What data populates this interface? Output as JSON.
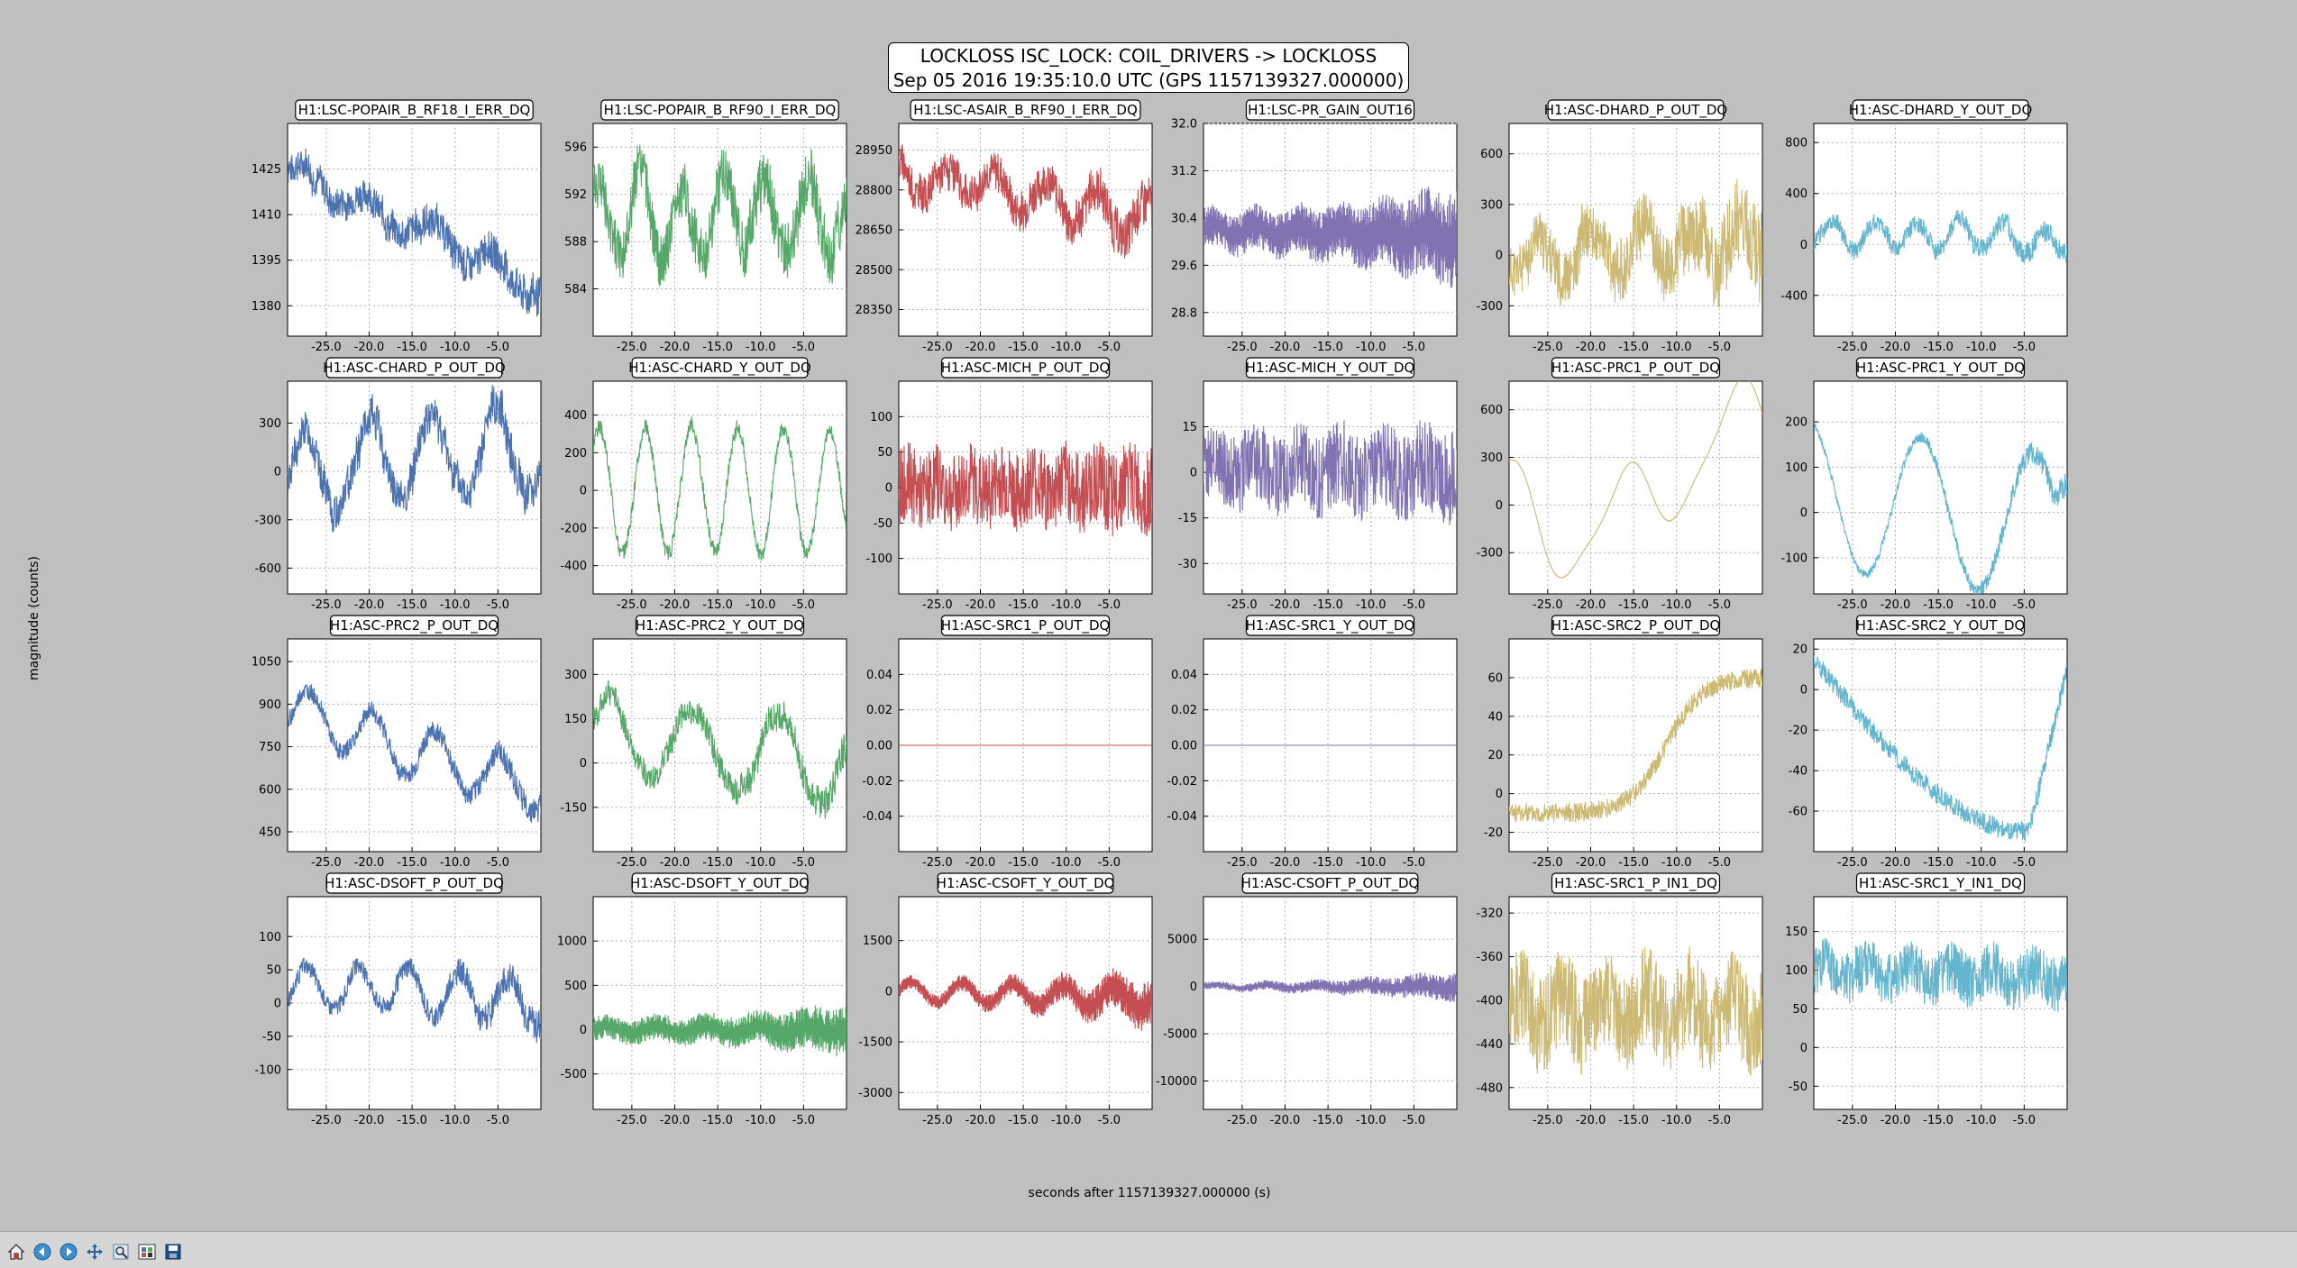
{
  "figure": {
    "title_line1": "LOCKLOSS ISC_LOCK: COIL_DRIVERS -> LOCKLOSS",
    "title_line2": "Sep 05 2016 19:35:10.0 UTC (GPS 1157139327.000000)",
    "ylabel": "magnitude (counts)",
    "xlabel": "seconds after 1157139327.000000 (s)"
  },
  "toolbar": {
    "buttons": [
      {
        "name": "home-icon",
        "label": "Home"
      },
      {
        "name": "back-icon",
        "label": "Back"
      },
      {
        "name": "forward-icon",
        "label": "Forward"
      },
      {
        "name": "pan-icon",
        "label": "Pan"
      },
      {
        "name": "zoom-icon",
        "label": "Zoom"
      },
      {
        "name": "configure-subplots-icon",
        "label": "Subplots"
      },
      {
        "name": "save-icon",
        "label": "Save"
      }
    ]
  },
  "colors": {
    "blue": "#4c72b0",
    "green": "#55a868",
    "red": "#c44e52",
    "purple": "#8172b2",
    "gold": "#ccb974",
    "cyan": "#64b5cd"
  },
  "chart_data": [
    {
      "type": "line",
      "title": "H1:LSC-POPAIR_B_RF18_I_ERR_DQ",
      "color": "blue",
      "xlim": [
        -29.5,
        0
      ],
      "ylim": [
        1370,
        1440
      ],
      "yticks": [
        "1425",
        "1410",
        "1395",
        "1380"
      ],
      "ytickvals": [
        1425,
        1410,
        1395,
        1380
      ],
      "xticks": [
        "-25.0",
        "-20.0",
        "-15.0",
        "-10.0",
        "-5.0"
      ],
      "shape": "trend",
      "start": 1425,
      "end": 1388,
      "noise": 5,
      "wave": 4,
      "waves": 4,
      "grow": 0.3
    },
    {
      "type": "line",
      "title": "H1:LSC-POPAIR_B_RF90_I_ERR_DQ",
      "color": "green",
      "xlim": [
        -29.5,
        0
      ],
      "ylim": [
        580,
        598
      ],
      "yticks": [
        "596",
        "592",
        "588",
        "584"
      ],
      "ytickvals": [
        596,
        592,
        588,
        584
      ],
      "xticks": [
        "-25.0",
        "-20.0",
        "-15.0",
        "-10.0",
        "-5.0"
      ],
      "shape": "wave",
      "start": 590,
      "end": 590,
      "noise": 2.2,
      "wave": 3,
      "waves": 6,
      "grow": 0.2
    },
    {
      "type": "line",
      "title": "H1:LSC-ASAIR_B_RF90_I_ERR_DQ",
      "color": "red",
      "xlim": [
        -29.5,
        0
      ],
      "ylim": [
        28250,
        29050
      ],
      "yticks": [
        "28950",
        "28800",
        "28650",
        "28500",
        "28350"
      ],
      "ytickvals": [
        28950,
        28800,
        28650,
        28500,
        28350
      ],
      "xticks": [
        "-25.0",
        "-20.0",
        "-15.0",
        "-10.0",
        "-5.0"
      ],
      "shape": "trend",
      "start": 28850,
      "end": 28700,
      "noise": 70,
      "wave": 60,
      "waves": 5,
      "grow": 0.3
    },
    {
      "type": "line",
      "title": "H1:LSC-PR_GAIN_OUT16",
      "color": "purple",
      "xlim": [
        -29.5,
        0
      ],
      "ylim": [
        28.4,
        32.0
      ],
      "yticks": [
        "32.0",
        "31.2",
        "30.4",
        "29.6",
        "28.8"
      ],
      "ytickvals": [
        32.0,
        31.2,
        30.4,
        29.6,
        28.8
      ],
      "xticks": [
        "-25.0",
        "-20.0",
        "-15.0",
        "-10.0",
        "-5.0"
      ],
      "shape": "grow",
      "start": 30.2,
      "end": 30.1,
      "noise": 0.25,
      "wave": 0.1,
      "waves": 6,
      "grow": 1.4
    },
    {
      "type": "line",
      "title": "H1:ASC-DHARD_P_OUT_DQ",
      "color": "gold",
      "xlim": [
        -29.5,
        0
      ],
      "ylim": [
        -480,
        780
      ],
      "yticks": [
        "600",
        "300",
        "0",
        "-300"
      ],
      "ytickvals": [
        600,
        300,
        0,
        -300
      ],
      "xticks": [
        "-25.0",
        "-20.0",
        "-15.0",
        "-10.0",
        "-5.0"
      ],
      "shape": "wave",
      "start": 0,
      "end": 100,
      "noise": 150,
      "wave": 120,
      "waves": 5,
      "grow": 0.8
    },
    {
      "type": "line",
      "title": "H1:ASC-DHARD_Y_OUT_DQ",
      "color": "cyan",
      "xlim": [
        -29.5,
        0
      ],
      "ylim": [
        -720,
        950
      ],
      "yticks": [
        "800",
        "400",
        "0",
        "-400"
      ],
      "ytickvals": [
        800,
        400,
        0,
        -400
      ],
      "xticks": [
        "-25.0",
        "-20.0",
        "-15.0",
        "-10.0",
        "-5.0"
      ],
      "shape": "wave",
      "start": 100,
      "end": 0,
      "noise": 70,
      "wave": 100,
      "waves": 6,
      "grow": 0.2
    },
    {
      "type": "line",
      "title": "H1:ASC-CHARD_P_OUT_DQ",
      "color": "blue",
      "xlim": [
        -29.5,
        0
      ],
      "ylim": [
        -760,
        560
      ],
      "yticks": [
        "300",
        "0",
        "-300",
        "-600"
      ],
      "ytickvals": [
        300,
        0,
        -300,
        -600
      ],
      "xticks": [
        "-25.0",
        "-20.0",
        "-15.0",
        "-10.0",
        "-5.0"
      ],
      "shape": "wave",
      "start": 0,
      "end": 100,
      "noise": 110,
      "wave": 260,
      "waves": 4,
      "grow": 0.2
    },
    {
      "type": "line",
      "title": "H1:ASC-CHARD_Y_OUT_DQ",
      "color": "green",
      "xlim": [
        -29.5,
        0
      ],
      "ylim": [
        -550,
        580
      ],
      "yticks": [
        "400",
        "200",
        "0",
        "-200",
        "-400"
      ],
      "ytickvals": [
        400,
        200,
        0,
        -200,
        -400
      ],
      "xticks": [
        "-25.0",
        "-20.0",
        "-15.0",
        "-10.0",
        "-5.0"
      ],
      "shape": "wave",
      "start": 0,
      "end": 0,
      "noise": 40,
      "wave": 330,
      "waves": 5.5,
      "grow": -0.2
    },
    {
      "type": "line",
      "title": "H1:ASC-MICH_P_OUT_DQ",
      "color": "red",
      "xlim": [
        -29.5,
        0
      ],
      "ylim": [
        -150,
        150
      ],
      "yticks": [
        "100",
        "50",
        "0",
        "-50",
        "-100"
      ],
      "ytickvals": [
        100,
        50,
        0,
        -50,
        -100
      ],
      "xticks": [
        "-25.0",
        "-20.0",
        "-15.0",
        "-10.0",
        "-5.0"
      ],
      "shape": "noise",
      "start": 0,
      "end": 0,
      "noise": 55,
      "wave": 10,
      "waves": 8,
      "grow": 0.1
    },
    {
      "type": "line",
      "title": "H1:ASC-MICH_Y_OUT_DQ",
      "color": "purple",
      "xlim": [
        -29.5,
        0
      ],
      "ylim": [
        -40,
        30
      ],
      "yticks": [
        "15",
        "0",
        "-15",
        "-30"
      ],
      "ytickvals": [
        15,
        0,
        -15,
        -30
      ],
      "xticks": [
        "-25.0",
        "-20.0",
        "-15.0",
        "-10.0",
        "-5.0"
      ],
      "shape": "noise",
      "start": 2,
      "end": 0,
      "noise": 13,
      "wave": 3,
      "waves": 6,
      "grow": 0.2
    },
    {
      "type": "line",
      "title": "H1:ASC-PRC1_P_OUT_DQ",
      "color": "gold",
      "xlim": [
        -29.5,
        0
      ],
      "ylim": [
        -560,
        780
      ],
      "yticks": [
        "600",
        "300",
        "0",
        "-300"
      ],
      "ytickvals": [
        600,
        300,
        0,
        -300
      ],
      "xticks": [
        "-25.0",
        "-20.0",
        "-15.0",
        "-10.0",
        "-5.0"
      ],
      "shape": "smooth",
      "start": 300,
      "end": 550,
      "noise": 4,
      "wave": 0,
      "waves": 0,
      "grow": 0
    },
    {
      "type": "line",
      "title": "H1:ASC-PRC1_Y_OUT_DQ",
      "color": "cyan",
      "xlim": [
        -29.5,
        0
      ],
      "ylim": [
        -180,
        290
      ],
      "yticks": [
        "200",
        "100",
        "0",
        "-100"
      ],
      "ytickvals": [
        200,
        100,
        0,
        -100
      ],
      "xticks": [
        "-25.0",
        "-20.0",
        "-15.0",
        "-10.0",
        "-5.0"
      ],
      "shape": "prc1y",
      "start": 150,
      "end": 100,
      "noise": 15,
      "wave": 0,
      "waves": 0,
      "grow": 0.8
    },
    {
      "type": "line",
      "title": "H1:ASC-PRC2_P_OUT_DQ",
      "color": "blue",
      "xlim": [
        -29.5,
        0
      ],
      "ylim": [
        380,
        1130
      ],
      "yticks": [
        "1050",
        "900",
        "750",
        "600",
        "450"
      ],
      "ytickvals": [
        1050,
        900,
        750,
        600,
        450
      ],
      "xticks": [
        "-25.0",
        "-20.0",
        "-15.0",
        "-10.0",
        "-5.0"
      ],
      "shape": "trend",
      "start": 880,
      "end": 600,
      "noise": 30,
      "wave": 90,
      "waves": 4,
      "grow": 0.5
    },
    {
      "type": "line",
      "title": "H1:ASC-PRC2_Y_OUT_DQ",
      "color": "green",
      "xlim": [
        -29.5,
        0
      ],
      "ylim": [
        -300,
        420
      ],
      "yticks": [
        "300",
        "150",
        "0",
        "-150"
      ],
      "ytickvals": [
        300,
        150,
        0,
        -150
      ],
      "xticks": [
        "-25.0",
        "-20.0",
        "-15.0",
        "-10.0",
        "-5.0"
      ],
      "shape": "wave",
      "start": 100,
      "end": 0,
      "noise": 40,
      "wave": 130,
      "waves": 3,
      "grow": 0.5
    },
    {
      "type": "line",
      "title": "H1:ASC-SRC1_P_OUT_DQ",
      "color": "red",
      "xlim": [
        -29.5,
        0
      ],
      "ylim": [
        -0.06,
        0.06
      ],
      "yticks": [
        "0.04",
        "0.02",
        "0.00",
        "-0.02",
        "-0.04"
      ],
      "ytickvals": [
        0.04,
        0.02,
        0.0,
        -0.02,
        -0.04
      ],
      "xticks": [
        "-25.0",
        "-20.0",
        "-15.0",
        "-10.0",
        "-5.0"
      ],
      "shape": "flat",
      "start": 0,
      "end": 0,
      "noise": 0,
      "wave": 0,
      "waves": 0,
      "grow": 0
    },
    {
      "type": "line",
      "title": "H1:ASC-SRC1_Y_OUT_DQ",
      "color": "purple",
      "xlim": [
        -29.5,
        0
      ],
      "ylim": [
        -0.06,
        0.06
      ],
      "yticks": [
        "0.04",
        "0.02",
        "0.00",
        "-0.02",
        "-0.04"
      ],
      "ytickvals": [
        0.04,
        0.02,
        0.0,
        -0.02,
        -0.04
      ],
      "xticks": [
        "-25.0",
        "-20.0",
        "-15.0",
        "-10.0",
        "-5.0"
      ],
      "shape": "flat",
      "start": 0,
      "end": 0,
      "noise": 0,
      "wave": 0,
      "waves": 0,
      "grow": 0
    },
    {
      "type": "line",
      "title": "H1:ASC-SRC2_P_OUT_DQ",
      "color": "gold",
      "xlim": [
        -29.5,
        0
      ],
      "ylim": [
        -30,
        80
      ],
      "yticks": [
        "60",
        "40",
        "20",
        "0",
        "-20"
      ],
      "ytickvals": [
        60,
        40,
        20,
        0,
        -20
      ],
      "xticks": [
        "-25.0",
        "-20.0",
        "-15.0",
        "-10.0",
        "-5.0"
      ],
      "shape": "src2p",
      "start": -5,
      "end": 55,
      "noise": 5,
      "wave": 0,
      "waves": 0,
      "grow": 0
    },
    {
      "type": "line",
      "title": "H1:ASC-SRC2_Y_OUT_DQ",
      "color": "cyan",
      "xlim": [
        -29.5,
        0
      ],
      "ylim": [
        -80,
        25
      ],
      "yticks": [
        "20",
        "0",
        "-20",
        "-40",
        "-60"
      ],
      "ytickvals": [
        20,
        0,
        -20,
        -40,
        -60
      ],
      "xticks": [
        "-25.0",
        "-20.0",
        "-15.0",
        "-10.0",
        "-5.0"
      ],
      "shape": "src2y",
      "start": 15,
      "end": 5,
      "noise": 5,
      "wave": 0,
      "waves": 0,
      "grow": 0
    },
    {
      "type": "line",
      "title": "H1:ASC-DSOFT_P_OUT_DQ",
      "color": "blue",
      "xlim": [
        -29.5,
        0
      ],
      "ylim": [
        -160,
        160
      ],
      "yticks": [
        "100",
        "50",
        "0",
        "-50",
        "-100"
      ],
      "ytickvals": [
        100,
        50,
        0,
        -50,
        -100
      ],
      "xticks": [
        "-25.0",
        "-20.0",
        "-15.0",
        "-10.0",
        "-5.0"
      ],
      "shape": "wave",
      "start": 30,
      "end": 0,
      "noise": 12,
      "wave": 35,
      "waves": 5,
      "grow": 1.2
    },
    {
      "type": "line",
      "title": "H1:ASC-DSOFT_Y_OUT_DQ",
      "color": "green",
      "xlim": [
        -29.5,
        0
      ],
      "ylim": [
        -900,
        1500
      ],
      "yticks": [
        "1000",
        "500",
        "0",
        "-500"
      ],
      "ytickvals": [
        1000,
        500,
        0,
        -500
      ],
      "xticks": [
        "-25.0",
        "-20.0",
        "-15.0",
        "-10.0",
        "-5.0"
      ],
      "shape": "grow",
      "start": 0,
      "end": 0,
      "noise": 100,
      "wave": 40,
      "waves": 5,
      "grow": 1.0
    },
    {
      "type": "line",
      "title": "H1:ASC-CSOFT_Y_OUT_DQ",
      "color": "red",
      "xlim": [
        -29.5,
        0
      ],
      "ylim": [
        -3500,
        2800
      ],
      "yticks": [
        "1500",
        "0",
        "-1500",
        "-3000"
      ],
      "ytickvals": [
        1500,
        0,
        -1500,
        -3000
      ],
      "xticks": [
        "-25.0",
        "-20.0",
        "-15.0",
        "-10.0",
        "-5.0"
      ],
      "shape": "grow",
      "start": 0,
      "end": -200,
      "noise": 150,
      "wave": 300,
      "waves": 5,
      "grow": 2.5
    },
    {
      "type": "line",
      "title": "H1:ASC-CSOFT_P_OUT_DQ",
      "color": "purple",
      "xlim": [
        -29.5,
        0
      ],
      "ylim": [
        -13000,
        9500
      ],
      "yticks": [
        "5000",
        "0",
        "-5000",
        "-10000"
      ],
      "ytickvals": [
        5000,
        0,
        -5000,
        -10000
      ],
      "xticks": [
        "-25.0",
        "-20.0",
        "-15.0",
        "-10.0",
        "-5.0"
      ],
      "shape": "grow",
      "start": 0,
      "end": 0,
      "noise": 300,
      "wave": 200,
      "waves": 5,
      "grow": 2.8
    },
    {
      "type": "line",
      "title": "H1:ASC-SRC1_P_IN1_DQ",
      "color": "gold",
      "xlim": [
        -29.5,
        0
      ],
      "ylim": [
        -500,
        -305
      ],
      "yticks": [
        "-320",
        "-360",
        "-400",
        "-440",
        "-480"
      ],
      "ytickvals": [
        -320,
        -360,
        -400,
        -440,
        -480
      ],
      "xticks": [
        "-25.0",
        "-20.0",
        "-15.0",
        "-10.0",
        "-5.0"
      ],
      "shape": "noise",
      "start": -410,
      "end": -410,
      "noise": 45,
      "wave": 15,
      "waves": 6,
      "grow": 0
    },
    {
      "type": "line",
      "title": "H1:ASC-SRC1_Y_IN1_DQ",
      "color": "cyan",
      "xlim": [
        -29.5,
        0
      ],
      "ylim": [
        -80,
        195
      ],
      "yticks": [
        "150",
        "100",
        "50",
        "0",
        "-50"
      ],
      "ytickvals": [
        150,
        100,
        50,
        0,
        -50
      ],
      "xticks": [
        "-25.0",
        "-20.0",
        "-15.0",
        "-10.0",
        "-5.0"
      ],
      "shape": "noise",
      "start": 100,
      "end": 90,
      "noise": 35,
      "wave": 10,
      "waves": 6,
      "grow": 0
    }
  ]
}
